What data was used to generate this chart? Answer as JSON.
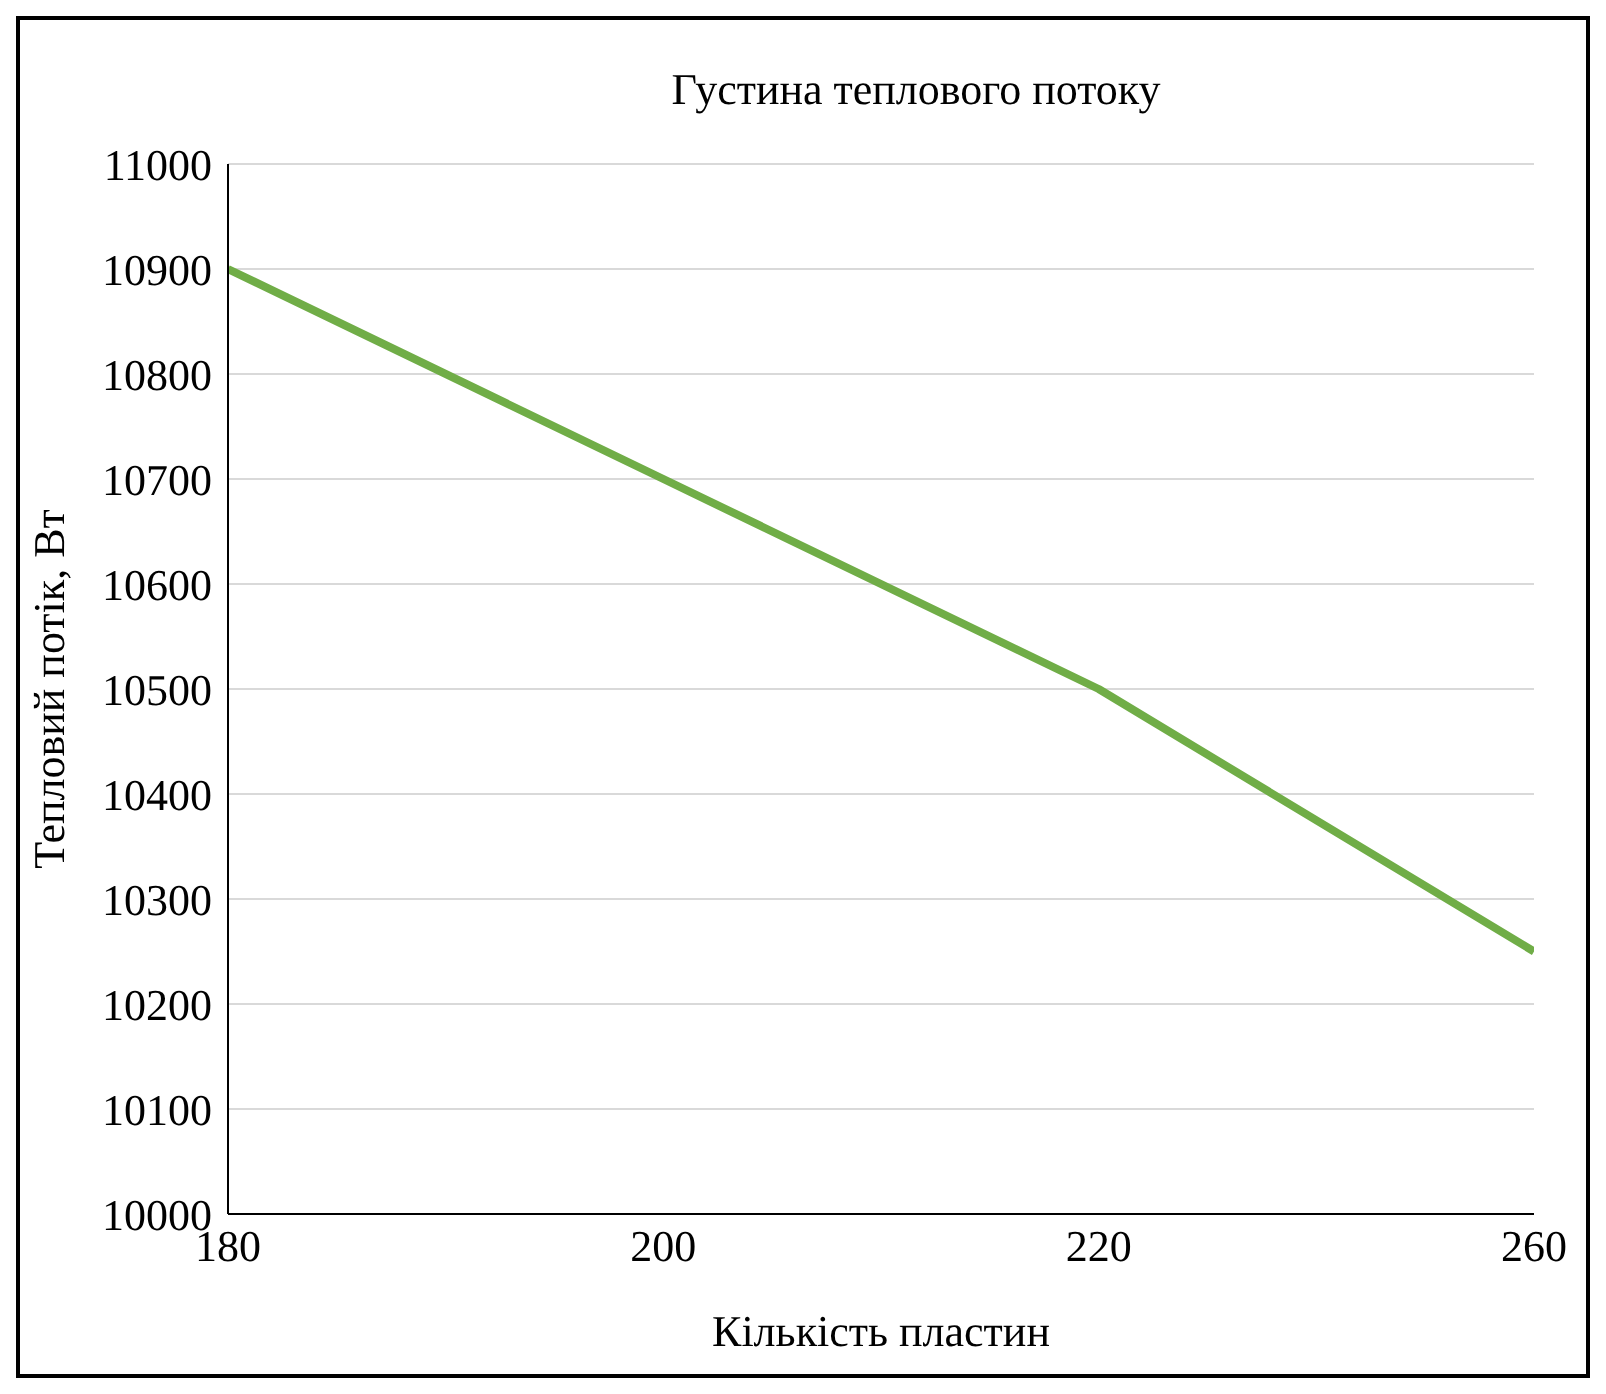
{
  "chart_data": {
    "type": "line",
    "title": "Густина теплового потоку",
    "xlabel": "Кількість пластин",
    "ylabel": "Тепловий потік, Вт",
    "categories": [
      "180",
      "200",
      "220",
      "260"
    ],
    "series": [
      {
        "color": "#70ad47",
        "values": [
          10900,
          10700,
          10500,
          10250
        ]
      }
    ],
    "ylim": [
      10000,
      11000
    ],
    "yticks": [
      10000,
      10100,
      10200,
      10300,
      10400,
      10500,
      10600,
      10700,
      10800,
      10900,
      11000
    ],
    "grid": "y",
    "marker": "none",
    "line_style": "solid"
  }
}
